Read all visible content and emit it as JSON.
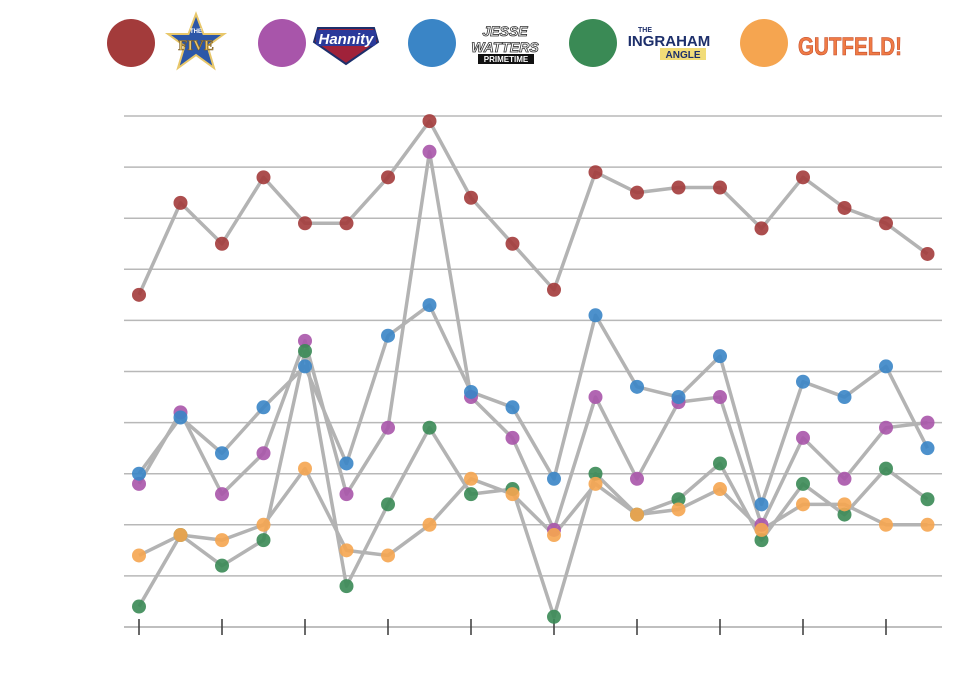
{
  "chart_data": {
    "type": "line",
    "title": "",
    "xlabel": "",
    "ylabel": "",
    "x": [
      1,
      2,
      3,
      4,
      5,
      6,
      7,
      8,
      9,
      10,
      11,
      12,
      13,
      14,
      15,
      16,
      17,
      18,
      19,
      20
    ],
    "ylim": [
      0,
      10
    ],
    "grid": true,
    "legend": "top",
    "line_color": "#b3b3b3",
    "series": [
      {
        "name": "The Five",
        "color": "#a33b3b",
        "values": [
          6.5,
          8.3,
          7.5,
          8.8,
          7.9,
          7.9,
          8.8,
          9.9,
          8.4,
          7.5,
          6.6,
          8.9,
          8.5,
          8.6,
          8.6,
          7.8,
          8.8,
          8.2,
          7.9,
          7.3
        ]
      },
      {
        "name": "Hannity",
        "color": "#a855aa",
        "values": [
          2.8,
          4.2,
          2.6,
          3.4,
          5.6,
          2.6,
          3.9,
          9.3,
          4.5,
          3.7,
          1.9,
          4.5,
          2.9,
          4.4,
          4.5,
          2.0,
          3.7,
          2.9,
          3.9,
          4.0
        ]
      },
      {
        "name": "Jesse Watters Primetime",
        "color": "#3a85c6",
        "values": [
          3.0,
          4.1,
          3.4,
          4.3,
          5.1,
          3.2,
          5.7,
          6.3,
          4.6,
          4.3,
          2.9,
          6.1,
          4.7,
          4.5,
          5.3,
          2.4,
          4.8,
          4.5,
          5.1,
          3.5
        ]
      },
      {
        "name": "The Ingraham Angle",
        "color": "#3a8a55",
        "values": [
          0.4,
          1.8,
          1.2,
          1.7,
          5.4,
          0.8,
          2.4,
          3.9,
          2.6,
          2.7,
          0.2,
          3.0,
          2.2,
          2.5,
          3.2,
          1.7,
          2.8,
          2.2,
          3.1,
          2.5
        ]
      },
      {
        "name": "Gutfeld!",
        "color": "#f5a550",
        "values": [
          1.4,
          1.8,
          1.7,
          2.0,
          3.1,
          1.5,
          1.4,
          2.0,
          2.9,
          2.6,
          1.8,
          2.8,
          2.2,
          2.3,
          2.7,
          1.9,
          2.4,
          2.4,
          2.0,
          2.0
        ]
      }
    ]
  },
  "legend": {
    "the_five": {
      "color": "#a33b3b",
      "logo_small": "THE",
      "logo_main": "FIVE"
    },
    "hannity": {
      "color": "#a855aa",
      "logo_main": "Hannity"
    },
    "watters": {
      "color": "#3a85c6",
      "logo_line1": "JESSE",
      "logo_line2": "WATTERS",
      "logo_line3": "PRIMETIME"
    },
    "ingraham": {
      "color": "#3a8a55",
      "logo_small": "THE",
      "logo_main": "INGRAHAM",
      "logo_sub": "ANGLE"
    },
    "gutfeld": {
      "color": "#f5a550",
      "logo_main": "GUTFELD!"
    }
  }
}
